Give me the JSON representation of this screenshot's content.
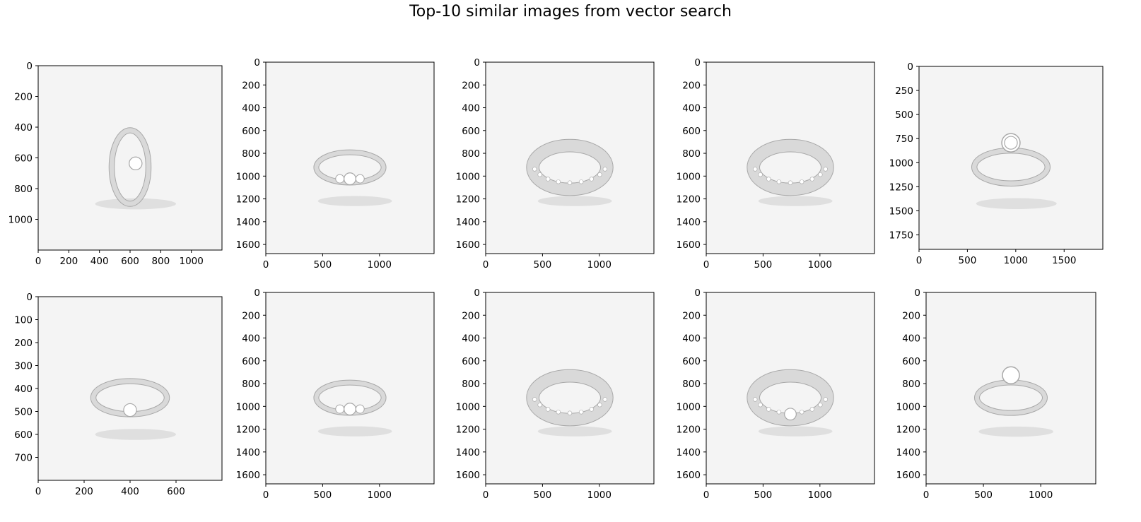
{
  "title": "Top-10 similar images from vector search",
  "colors": {
    "image_bg": "#f4f4f4",
    "metal": "#d9d9d9",
    "metal_dark": "#a8a8a8",
    "shadow": "#c9c9c9"
  },
  "chart_data": [
    {
      "type": "image",
      "depicts": "ring-with-marquise-center-stone",
      "xlim": [
        0,
        1200
      ],
      "ylim": [
        1200,
        0
      ],
      "xticks": [
        "0",
        "200",
        "400",
        "600",
        "800",
        "1000"
      ],
      "yticks": [
        "0",
        "200",
        "400",
        "600",
        "800",
        "1000"
      ]
    },
    {
      "type": "image",
      "depicts": "three-stone-ring",
      "xlim": [
        0,
        1480
      ],
      "ylim": [
        1680,
        0
      ],
      "xticks": [
        "0",
        "500",
        "1000"
      ],
      "yticks": [
        "0",
        "200",
        "400",
        "600",
        "800",
        "1000",
        "1200",
        "1400",
        "1600"
      ]
    },
    {
      "type": "image",
      "depicts": "pave-love-band-ring",
      "xlim": [
        0,
        1480
      ],
      "ylim": [
        1680,
        0
      ],
      "xticks": [
        "0",
        "500",
        "1000"
      ],
      "yticks": [
        "0",
        "200",
        "400",
        "600",
        "800",
        "1000",
        "1200",
        "1400",
        "1600"
      ]
    },
    {
      "type": "image",
      "depicts": "pave-dome-ring",
      "xlim": [
        0,
        1480
      ],
      "ylim": [
        1680,
        0
      ],
      "xticks": [
        "0",
        "500",
        "1000"
      ],
      "yticks": [
        "0",
        "200",
        "400",
        "600",
        "800",
        "1000",
        "1200",
        "1400",
        "1600"
      ]
    },
    {
      "type": "image",
      "depicts": "heart-halo-open-ring",
      "xlim": [
        0,
        1900
      ],
      "ylim": [
        1900,
        0
      ],
      "xticks": [
        "0",
        "500",
        "1000",
        "1500"
      ],
      "yticks": [
        "0",
        "250",
        "500",
        "750",
        "1000",
        "1250",
        "1500",
        "1750"
      ]
    },
    {
      "type": "image",
      "depicts": "bypass-diamond-ring",
      "xlim": [
        0,
        800
      ],
      "ylim": [
        800,
        0
      ],
      "xticks": [
        "0",
        "200",
        "400",
        "600"
      ],
      "yticks": [
        "0",
        "100",
        "200",
        "300",
        "400",
        "500",
        "600",
        "700"
      ]
    },
    {
      "type": "image",
      "depicts": "three-stone-pear-ring",
      "xlim": [
        0,
        1480
      ],
      "ylim": [
        1680,
        0
      ],
      "xticks": [
        "0",
        "500",
        "1000"
      ],
      "yticks": [
        "0",
        "200",
        "400",
        "600",
        "800",
        "1000",
        "1200",
        "1400",
        "1600"
      ]
    },
    {
      "type": "image",
      "depicts": "pave-dome-band-front",
      "xlim": [
        0,
        1480
      ],
      "ylim": [
        1680,
        0
      ],
      "xticks": [
        "0",
        "500",
        "1000"
      ],
      "yticks": [
        "0",
        "200",
        "400",
        "600",
        "800",
        "1000",
        "1200",
        "1400",
        "1600"
      ]
    },
    {
      "type": "image",
      "depicts": "solitaire-channel-band-ring",
      "xlim": [
        0,
        1480
      ],
      "ylim": [
        1680,
        0
      ],
      "xticks": [
        "0",
        "500",
        "1000"
      ],
      "yticks": [
        "0",
        "200",
        "400",
        "600",
        "800",
        "1000",
        "1200",
        "1400",
        "1600"
      ]
    },
    {
      "type": "image",
      "depicts": "clover-halo-ring",
      "xlim": [
        0,
        1480
      ],
      "ylim": [
        1680,
        0
      ],
      "xticks": [
        "0",
        "500",
        "1000"
      ],
      "yticks": [
        "0",
        "200",
        "400",
        "600",
        "800",
        "1000",
        "1200",
        "1400",
        "1600"
      ]
    }
  ]
}
